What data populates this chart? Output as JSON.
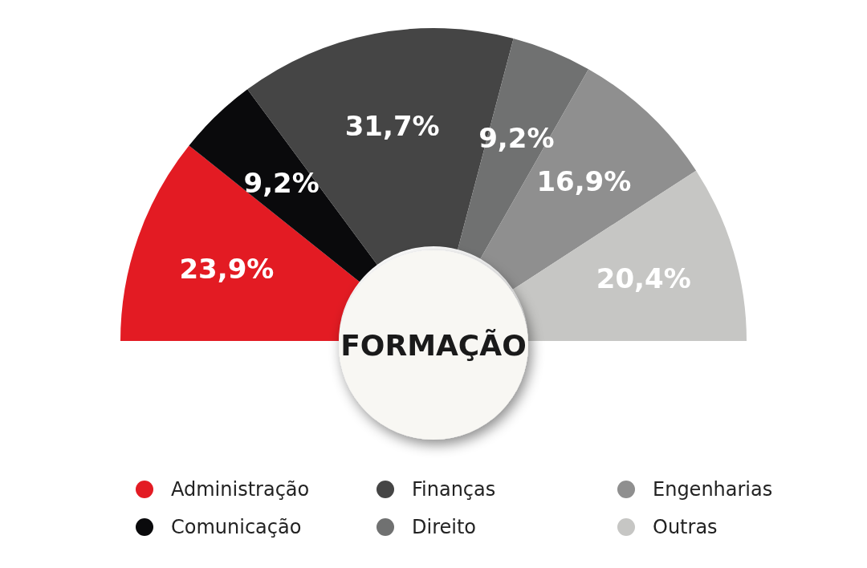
{
  "chart_data": {
    "type": "donut",
    "title": "FORMAÇÃO",
    "categories": [
      "Administração",
      "Comunicação",
      "Finanças",
      "Direito",
      "Engenharias",
      "Outras"
    ],
    "values": [
      23.9,
      9.2,
      31.7,
      9.2,
      16.9,
      20.4
    ],
    "value_labels": [
      "23,9%",
      "9,2%",
      "31,7%",
      "9,2%",
      "16,9%",
      "20,4%"
    ],
    "colors": [
      "#e31b23",
      "#0a0a0c",
      "#454545",
      "#707171",
      "#8f8f8f",
      "#c6c6c4"
    ],
    "legend": "bottom"
  }
}
